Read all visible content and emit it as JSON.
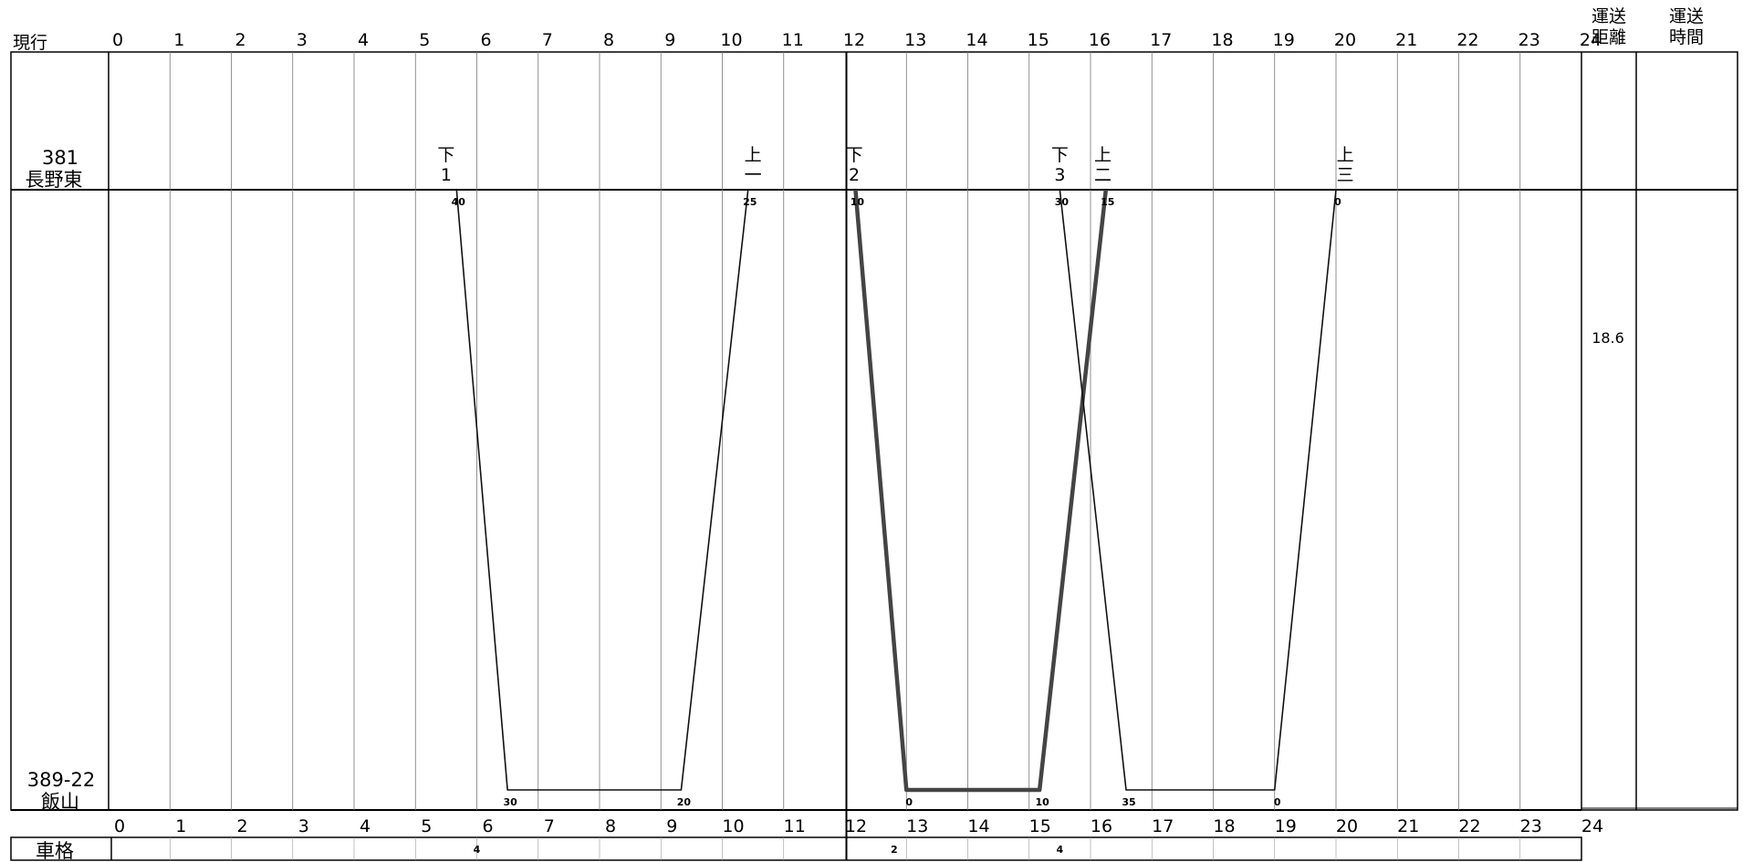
{
  "header": {
    "row_label": "現行",
    "distance_label_line1": "運送",
    "distance_label_line2": "距離",
    "time_label_line1": "運送",
    "time_label_line2": "時間"
  },
  "hours": [
    "0",
    "1",
    "2",
    "3",
    "4",
    "5",
    "6",
    "7",
    "8",
    "9",
    "10",
    "11",
    "12",
    "13",
    "14",
    "15",
    "16",
    "17",
    "18",
    "19",
    "20",
    "21",
    "22",
    "23",
    "24"
  ],
  "stations": {
    "top": {
      "code": "381",
      "name": "長野東"
    },
    "bottom": {
      "code": "389-22",
      "name": "飯山"
    }
  },
  "distance_value": "18.6",
  "footer": {
    "label": "車格",
    "segments": [
      {
        "value": "4",
        "hour": 6
      },
      {
        "value": "2",
        "hour": 12.8
      },
      {
        "value": "4",
        "hour": 15.5
      }
    ]
  },
  "chart_data": {
    "type": "line",
    "x_axis": {
      "label": "現行",
      "min": 0,
      "max": 24
    },
    "stations": [
      "381 長野東",
      "389-22 飯山"
    ],
    "trains": [
      {
        "name_lines": [
          "下",
          "1"
        ],
        "label_hour": 5.5,
        "points": [
          {
            "h": 5.67,
            "s": 0
          },
          {
            "h": 6.5,
            "s": 1
          },
          {
            "h": 9.33,
            "s": 1
          },
          {
            "h": 10.42,
            "s": 0
          }
        ],
        "minute_labels": [
          {
            "text": "40",
            "h": 5.67,
            "s": 0
          },
          {
            "text": "30",
            "h": 6.5,
            "s": 1
          },
          {
            "text": "20",
            "h": 9.33,
            "s": 1
          },
          {
            "text": "25",
            "h": 10.42,
            "s": 0
          }
        ],
        "bold": false
      },
      {
        "name_lines": [
          "上",
          "一"
        ],
        "label_hour": 10.5,
        "points": [],
        "minute_labels": [],
        "bold": false
      },
      {
        "name_lines": [
          "下",
          "2"
        ],
        "label_hour": 12.15,
        "points": [
          {
            "h": 12.17,
            "s": 0
          },
          {
            "h": 13,
            "s": 1
          },
          {
            "h": 15.17,
            "s": 1
          },
          {
            "h": 16.25,
            "s": 0
          }
        ],
        "minute_labels": [
          {
            "text": "10",
            "h": 12.17,
            "s": 0
          },
          {
            "text": "0",
            "h": 13,
            "s": 1
          },
          {
            "text": "10",
            "h": 15.17,
            "s": 1
          },
          {
            "text": "15",
            "h": 16.25,
            "s": 0
          }
        ],
        "bold": true
      },
      {
        "name_lines": [
          "下",
          "3"
        ],
        "label_hour": 15.5,
        "points": [
          {
            "h": 15.5,
            "s": 0
          },
          {
            "h": 16.58,
            "s": 1
          },
          {
            "h": 19,
            "s": 1
          },
          {
            "h": 20,
            "s": 0
          }
        ],
        "minute_labels": [
          {
            "text": "30",
            "h": 15.5,
            "s": 0
          },
          {
            "text": "35",
            "h": 16.58,
            "s": 1
          },
          {
            "text": "0",
            "h": 19,
            "s": 1
          },
          {
            "text": "0",
            "h": 20,
            "s": 0
          }
        ],
        "bold": false
      },
      {
        "name_lines": [
          "上",
          "二"
        ],
        "label_hour": 16.2,
        "points": [],
        "minute_labels": [],
        "bold": false
      },
      {
        "name_lines": [
          "上",
          "三"
        ],
        "label_hour": 20.15,
        "points": [],
        "minute_labels": [],
        "bold": false
      }
    ]
  }
}
